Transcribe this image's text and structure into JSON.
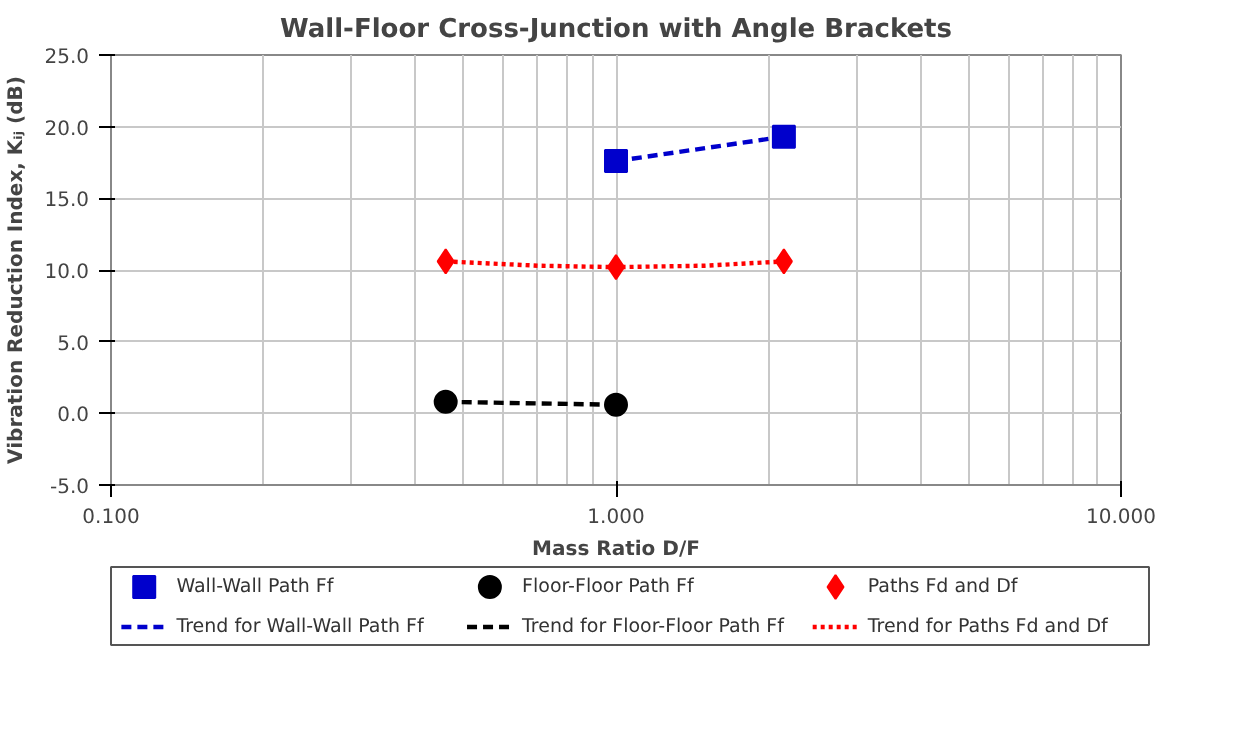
{
  "chart_data": {
    "type": "scatter",
    "title": "Wall-Floor Cross-Junction with Angle Brackets",
    "xlabel": "Mass Ratio D/F",
    "ylabel": "Vibration Reduction Index, Kᵢⱼ (dB)",
    "log": "x",
    "xlim": [
      0.1,
      10
    ],
    "xticks": [
      {
        "value": 0.1,
        "label": "0.100"
      },
      {
        "value": 1,
        "label": "1.000"
      },
      {
        "value": 10,
        "label": "10.000"
      }
    ],
    "ylim": [
      -5,
      25
    ],
    "yticks": [
      {
        "value": -5,
        "label": "-5.0"
      },
      {
        "value": 0,
        "label": "0.0"
      },
      {
        "value": 5,
        "label": "5.0"
      },
      {
        "value": 10,
        "label": "10.0"
      },
      {
        "value": 15,
        "label": "15.0"
      },
      {
        "value": 20,
        "label": "20.0"
      },
      {
        "value": 25,
        "label": "25.0"
      }
    ],
    "grid": true,
    "legend": "bottom",
    "series": [
      {
        "name": "Wall-Wall Path Ff",
        "marker": "square",
        "color": "#0000cc",
        "x": [
          1.0,
          2.15
        ],
        "values": [
          17.6,
          19.3
        ]
      },
      {
        "name": "Floor-Floor Path Ff",
        "marker": "circle",
        "color": "#000000",
        "x": [
          0.46,
          1.0
        ],
        "values": [
          0.8,
          0.6
        ]
      },
      {
        "name": "Paths Fd and Df",
        "marker": "diamond",
        "color": "#ff0000",
        "x": [
          0.46,
          1.0,
          2.15
        ],
        "values": [
          10.6,
          10.2,
          10.6
        ]
      },
      {
        "name": "Trend for Wall-Wall Path Ff",
        "type": "line",
        "line_style": "dashed",
        "color": "#0000cc",
        "x": [
          1.0,
          2.15
        ],
        "values": [
          17.6,
          19.3
        ]
      },
      {
        "name": "Trend for Floor-Floor Path Ff",
        "type": "line",
        "line_style": "dashed",
        "color": "#000000",
        "x": [
          0.46,
          1.0
        ],
        "values": [
          0.8,
          0.6
        ]
      },
      {
        "name": "Trend for Paths Fd and Df",
        "type": "line",
        "line_style": "dotted",
        "color": "#ff0000",
        "x": [
          0.46,
          0.7,
          1.0,
          1.5,
          2.15
        ],
        "values": [
          10.6,
          10.3,
          10.2,
          10.3,
          10.6
        ]
      }
    ]
  }
}
